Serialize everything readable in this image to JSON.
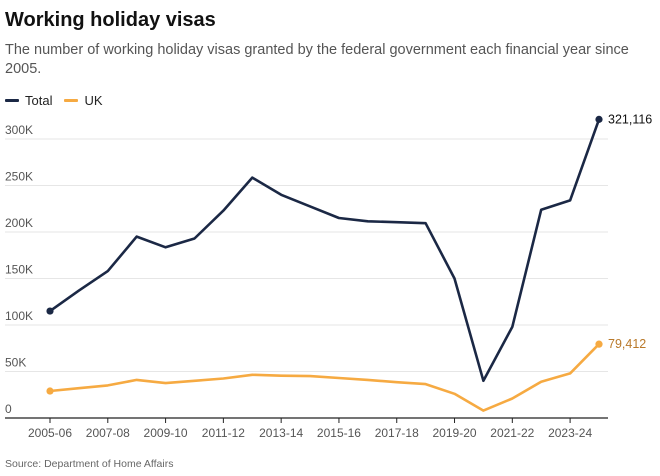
{
  "colors": {
    "total": "#1b2845",
    "uk": "#f6aa42",
    "grid": "#e6e6e6",
    "axis": "#222222",
    "tick_label": "#555555"
  },
  "chart_data": {
    "type": "line",
    "title": "Working holiday visas",
    "subtitle": "The number of working holiday visas granted by the federal government each financial year since 2005.",
    "source": "Source: Department of Home Affairs",
    "xlabel": "",
    "ylabel": "",
    "x": [
      "2005-06",
      "2006-07",
      "2007-08",
      "2008-09",
      "2009-10",
      "2010-11",
      "2011-12",
      "2012-13",
      "2013-14",
      "2014-15",
      "2015-16",
      "2016-17",
      "2017-18",
      "2018-19",
      "2019-20",
      "2020-21",
      "2021-22",
      "2022-23",
      "2023-24",
      "2024-25"
    ],
    "x_tick_labels": [
      "2005-06",
      "2007-08",
      "2009-10",
      "2011-12",
      "2013-14",
      "2015-16",
      "2017-18",
      "2019-20",
      "2021-22",
      "2023-24"
    ],
    "y_ticks": [
      0,
      50000,
      100000,
      150000,
      200000,
      250000,
      300000
    ],
    "y_tick_labels": [
      "0",
      "50K",
      "100K",
      "150K",
      "200K",
      "250K",
      "300K"
    ],
    "ylim": [
      0,
      330000
    ],
    "grid": true,
    "legend": "top-left",
    "series": [
      {
        "name": "Total",
        "values": [
          115000,
          137000,
          158000,
          195000,
          183500,
          193000,
          223000,
          258500,
          240000,
          227500,
          215000,
          211500,
          210500,
          209500,
          150000,
          40000,
          98000,
          224000,
          234000,
          321116
        ],
        "end_label": "321,116"
      },
      {
        "name": "UK",
        "values": [
          29000,
          32000,
          35000,
          41000,
          37500,
          40000,
          42500,
          46500,
          45500,
          45000,
          43000,
          41000,
          38500,
          36500,
          26000,
          8000,
          21000,
          39000,
          48000,
          79412
        ],
        "end_label": "79,412"
      }
    ]
  }
}
